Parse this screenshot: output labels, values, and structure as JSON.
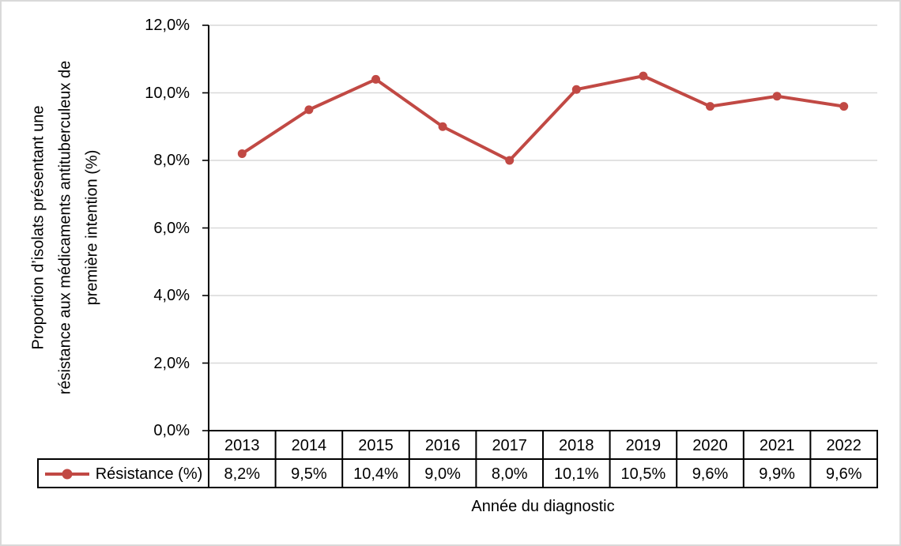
{
  "chart_data": {
    "type": "line",
    "title": "",
    "categories": [
      "2013",
      "2014",
      "2015",
      "2016",
      "2017",
      "2018",
      "2019",
      "2020",
      "2021",
      "2022"
    ],
    "series": [
      {
        "name": "Résistance (%)",
        "values": [
          8.2,
          9.5,
          10.4,
          9.0,
          8.0,
          10.1,
          10.5,
          9.6,
          9.9,
          9.6
        ],
        "display_values": [
          "8,2%",
          "9,5%",
          "10,4%",
          "9,0%",
          "8,0%",
          "10,1%",
          "10,5%",
          "9,6%",
          "9,9%",
          "9,6%"
        ],
        "color": "#c14944",
        "marker": "circle"
      }
    ],
    "xlabel": "Année du diagnostic",
    "ylabel": "Proportion d’isolats présentant une résistance aux médicaments antituberculeux de première intention (%)",
    "ylabel_lines": [
      "Proportion d’isolats présentant une",
      "résistance aux médicaments antituberculeux de",
      "première intention (%)"
    ],
    "ylim": [
      0,
      12
    ],
    "ytick_step": 2,
    "ytick_labels": [
      "0,0%",
      "2,0%",
      "4,0%",
      "6,0%",
      "8,0%",
      "10,0%",
      "12,0%"
    ],
    "grid": true,
    "legend_position": "data-table-left",
    "data_table_shown": true,
    "colors": {
      "gridline": "#d9d9d9",
      "axis": "#000000",
      "table_border": "#000000",
      "figure_border": "#d9d9d9"
    }
  }
}
